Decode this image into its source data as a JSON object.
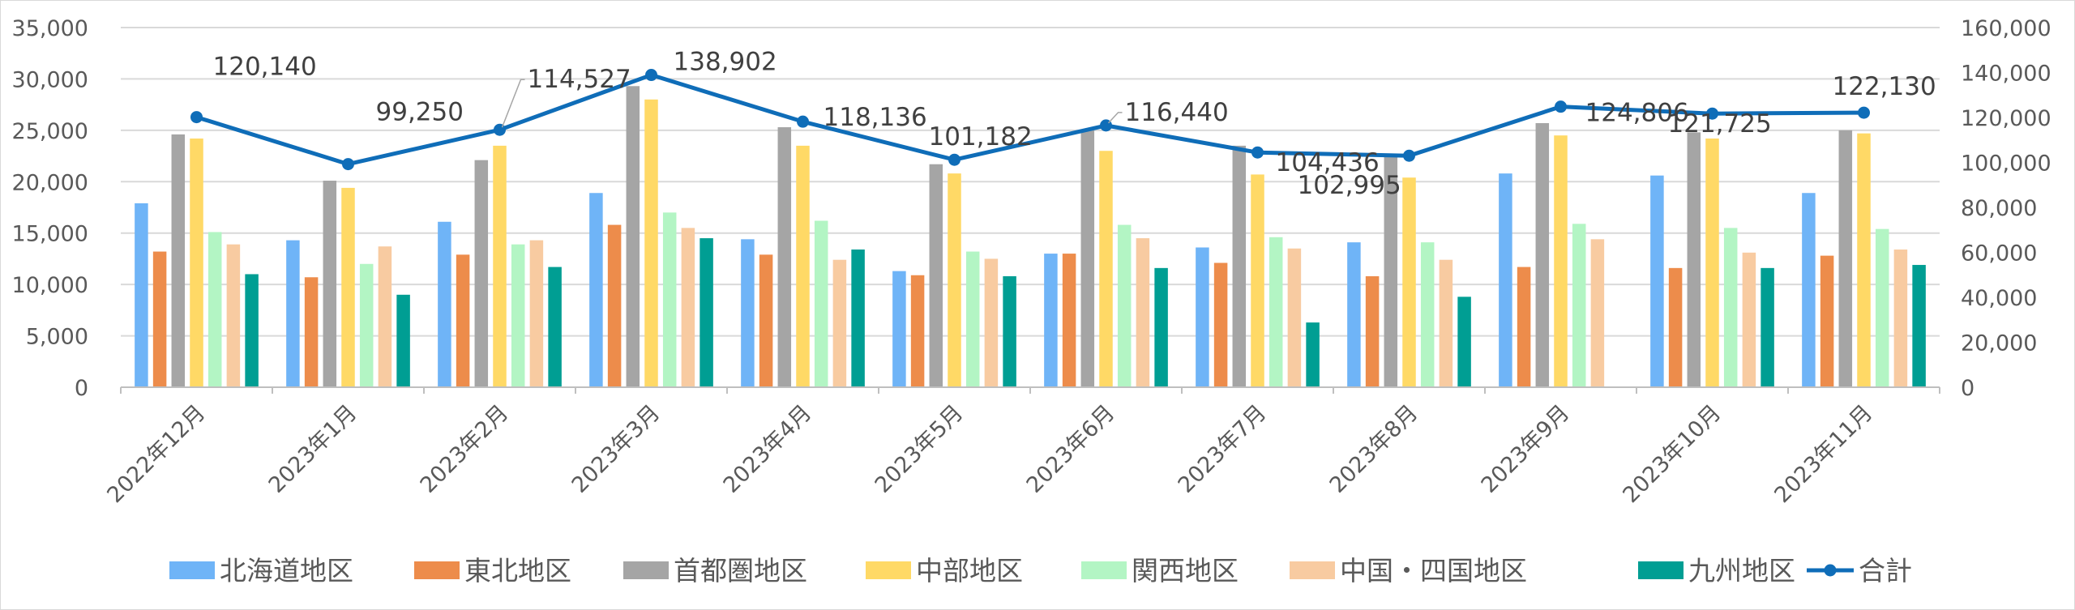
{
  "chart_data": {
    "type": "bar",
    "categories": [
      "2022年12月",
      "2023年1月",
      "2023年2月",
      "2023年3月",
      "2023年4月",
      "2023年5月",
      "2023年6月",
      "2023年7月",
      "2023年8月",
      "2023年9月",
      "2023年10月",
      "2023年11月"
    ],
    "y_left": {
      "ylim": [
        0,
        35000
      ],
      "ticks": [
        "0",
        "5,000",
        "10,000",
        "15,000",
        "20,000",
        "25,000",
        "30,000",
        "35,000"
      ]
    },
    "y_right": {
      "ylim": [
        0,
        160000
      ],
      "ticks": [
        "0",
        "20,000",
        "40,000",
        "60,000",
        "80,000",
        "100,000",
        "120,000",
        "140,000",
        "160,000"
      ]
    },
    "grid": true,
    "legend_position": "bottom",
    "series": [
      {
        "name": "北海道地区",
        "color": "#6fb4f7",
        "type": "bar",
        "axis": "left",
        "values": [
          17900,
          14300,
          16100,
          18900,
          14400,
          11300,
          13000,
          13600,
          14100,
          20800,
          20600,
          18900
        ]
      },
      {
        "name": "東北地区",
        "color": "#ed8c4b",
        "type": "bar",
        "axis": "left",
        "values": [
          13200,
          10700,
          12900,
          15800,
          12900,
          10900,
          13000,
          12100,
          10800,
          11700,
          11600,
          12800
        ]
      },
      {
        "name": "首都圏地区",
        "color": "#a5a5a5",
        "type": "bar",
        "axis": "left",
        "values": [
          24600,
          20100,
          22100,
          29300,
          25300,
          21700,
          25000,
          23500,
          22600,
          25700,
          24800,
          25000
        ]
      },
      {
        "name": "中部地区",
        "color": "#ffd966",
        "type": "bar",
        "axis": "left",
        "values": [
          24200,
          19400,
          23500,
          28000,
          23500,
          20800,
          23000,
          20700,
          20400,
          24500,
          24200,
          24700
        ]
      },
      {
        "name": "関西地区",
        "color": "#b3f5c4",
        "type": "bar",
        "axis": "left",
        "values": [
          15100,
          12000,
          13900,
          17000,
          16200,
          13200,
          15800,
          14600,
          14100,
          15900,
          15500,
          15400
        ]
      },
      {
        "name": "中国・四国地区",
        "color": "#f8cba1",
        "type": "bar",
        "axis": "left",
        "values": [
          13900,
          13700,
          14300,
          15500,
          12400,
          12500,
          14500,
          13500,
          12400,
          14400,
          13100,
          13400
        ]
      },
      {
        "name": "九州地区",
        "color": "#009e93",
        "type": "bar",
        "axis": "left",
        "values": [
          11000,
          9000,
          11700,
          14500,
          13400,
          10800,
          11600,
          6300,
          8800,
          null,
          11600,
          11900
        ]
      },
      {
        "name": "合計",
        "color": "#0f6db8",
        "type": "line",
        "axis": "right",
        "values": [
          120140,
          99250,
          114527,
          138902,
          118136,
          101182,
          116440,
          104436,
          102995,
          124806,
          121725,
          122130
        ],
        "labels": [
          "120,140",
          "99,250",
          "114,527",
          "138,902",
          "118,136",
          "101,182",
          "116,440",
          "104,436",
          "102,995",
          "124,806",
          "121,725",
          "122,130"
        ]
      }
    ]
  }
}
